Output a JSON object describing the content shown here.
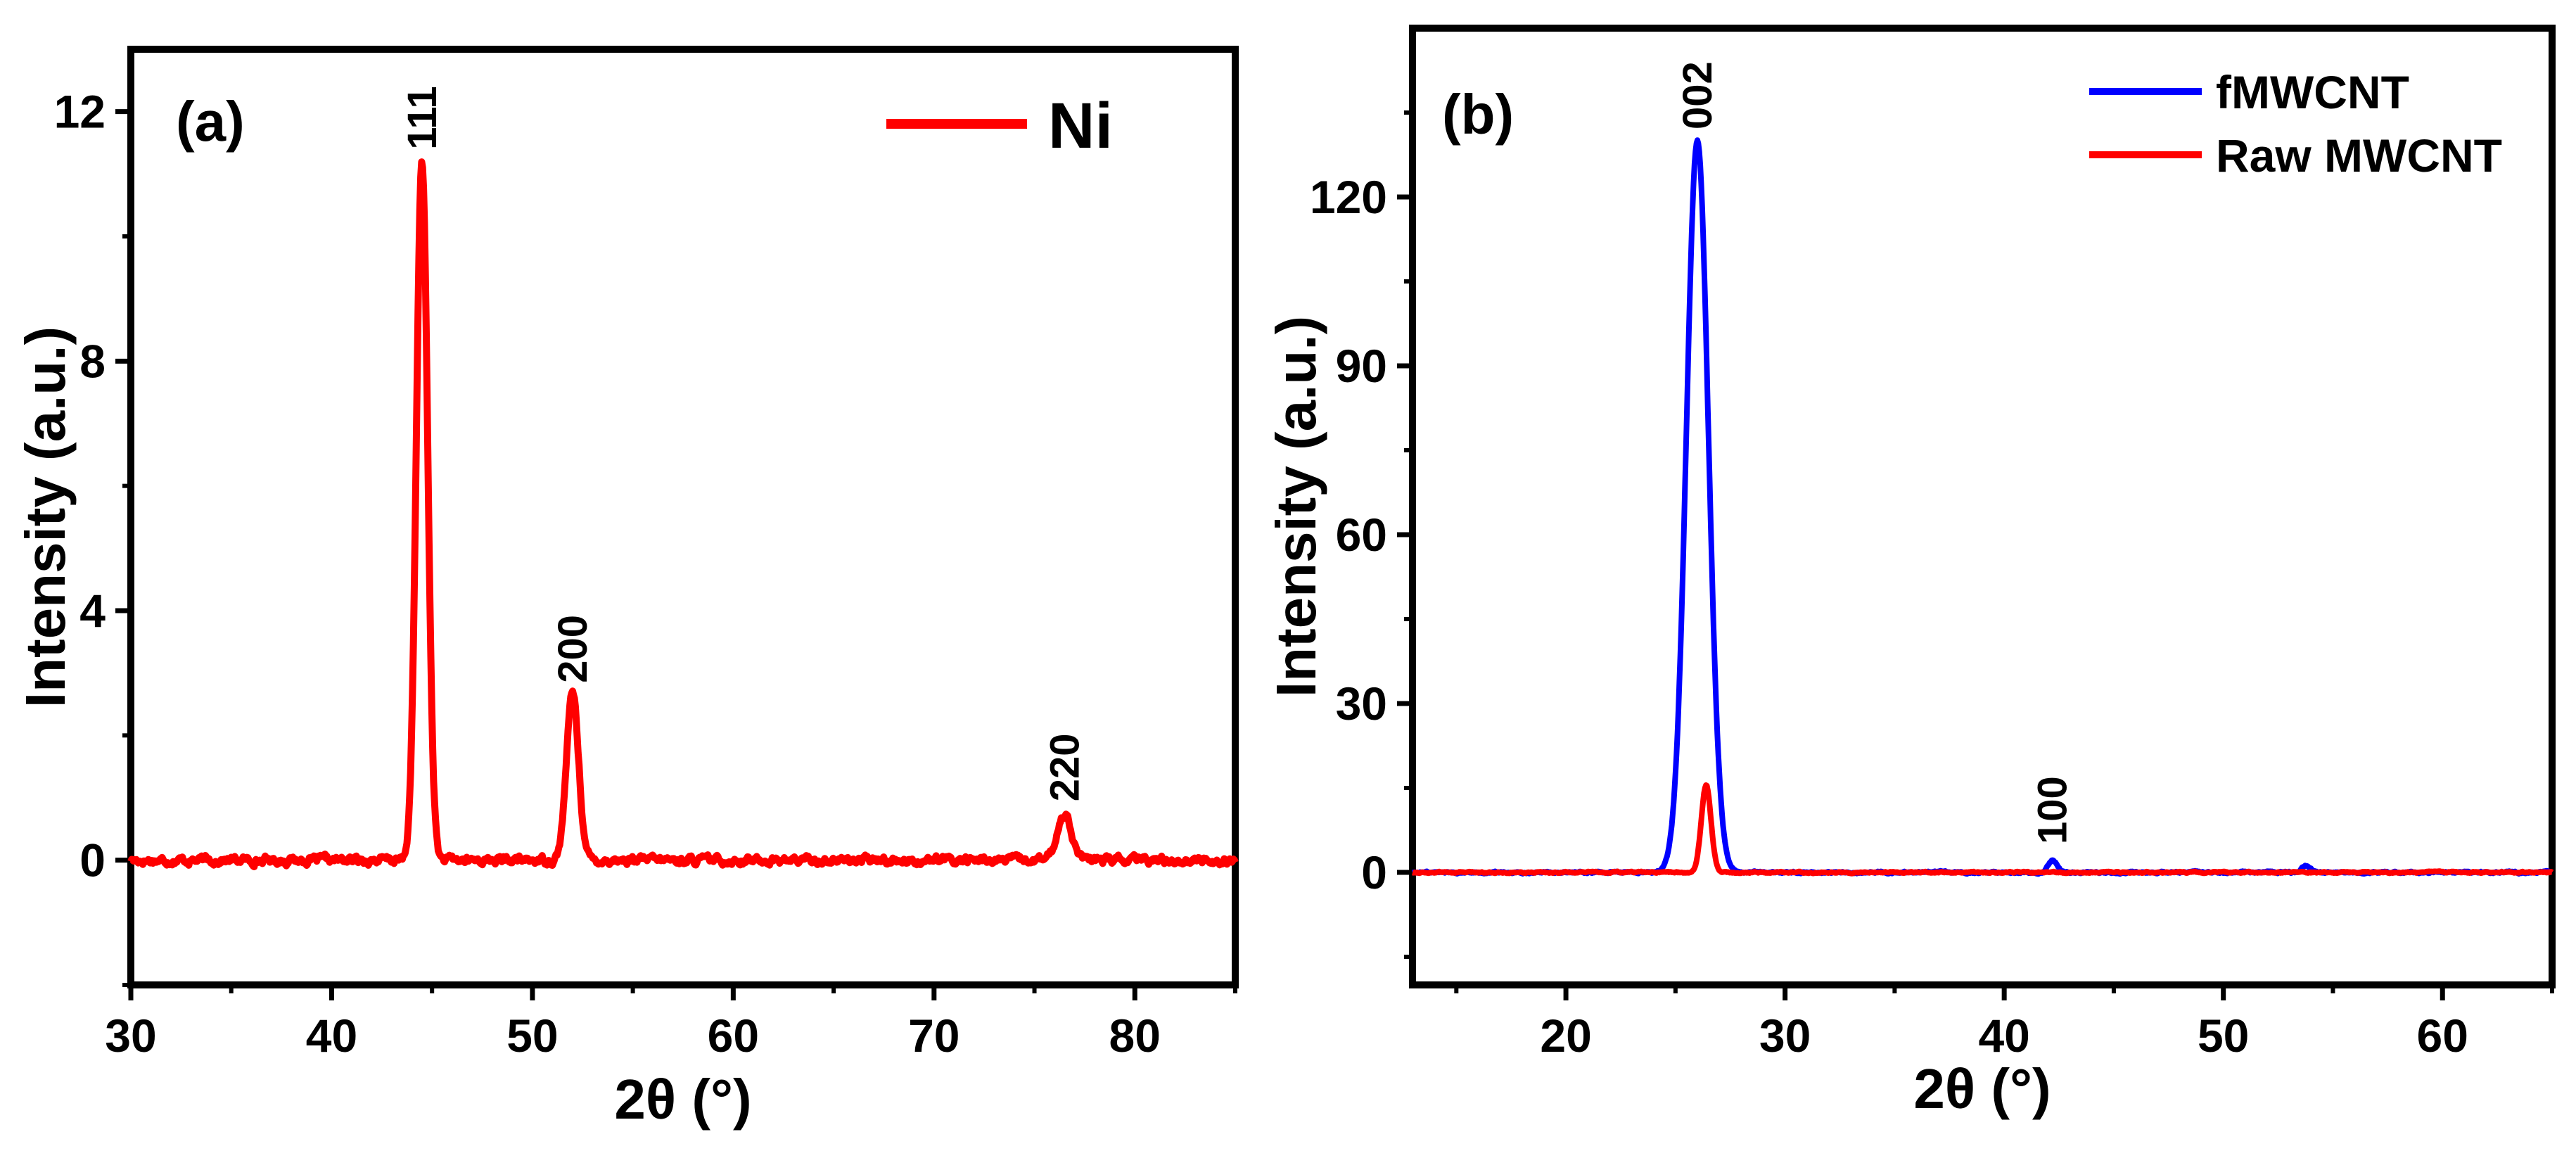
{
  "chart_data": [
    {
      "type": "line",
      "panel_label": "(a)",
      "xlabel": "2θ (°)",
      "ylabel": "Intensity (a.u.)",
      "xlim": [
        30,
        85
      ],
      "ylim": [
        -2,
        13
      ],
      "xticks": [
        30,
        40,
        50,
        60,
        70,
        80
      ],
      "xtick_labels": [
        "30",
        "40",
        "50",
        "60",
        "70",
        "80"
      ],
      "yticks": [
        0,
        4,
        8,
        12
      ],
      "ytick_labels": [
        "0",
        "4",
        "8",
        "12"
      ],
      "legend_position": "top-right",
      "series": [
        {
          "name": "Ni",
          "color": "#ff0000",
          "peaks": [
            {
              "pos": 44.5,
              "height": 11.2,
              "width": 0.28
            },
            {
              "pos": 52.0,
              "height": 2.7,
              "width": 0.3
            },
            {
              "pos": 76.5,
              "height": 0.75,
              "width": 0.35
            }
          ],
          "noise_amplitude": 0.15
        }
      ],
      "annotations": [
        {
          "text": "111",
          "x": 44.5,
          "y": 11.3
        },
        {
          "text": "200",
          "x": 52.0,
          "y": 2.75
        },
        {
          "text": "220",
          "x": 76.5,
          "y": 0.85
        }
      ]
    },
    {
      "type": "line",
      "panel_label": "(b)",
      "xlabel": "2θ (°)",
      "ylabel": "Intensity (a.u.)",
      "xlim": [
        13,
        65
      ],
      "ylim": [
        -20,
        150
      ],
      "xticks": [
        20,
        30,
        40,
        50,
        60
      ],
      "xtick_labels": [
        "20",
        "30",
        "40",
        "50",
        "60"
      ],
      "yticks": [
        0,
        30,
        60,
        90,
        120
      ],
      "ytick_labels": [
        "0",
        "30",
        "60",
        "90",
        "120"
      ],
      "legend_position": "top-right",
      "series": [
        {
          "name": "fMWCNT",
          "color": "#0000ff",
          "peaks": [
            {
              "pos": 26.0,
              "height": 130,
              "width": 0.5
            },
            {
              "pos": 42.2,
              "height": 2.2,
              "width": 0.2
            },
            {
              "pos": 53.8,
              "height": 1.2,
              "width": 0.2
            }
          ],
          "noise_amplitude": 0.4
        },
        {
          "name": "Raw MWCNT",
          "color": "#ff0000",
          "peaks": [
            {
              "pos": 26.4,
              "height": 15.5,
              "width": 0.22
            }
          ],
          "noise_amplitude": 0.3
        }
      ],
      "annotations": [
        {
          "text": "002",
          "x": 26.0,
          "y": 131
        },
        {
          "text": "100",
          "x": 42.2,
          "y": 4
        }
      ]
    }
  ]
}
